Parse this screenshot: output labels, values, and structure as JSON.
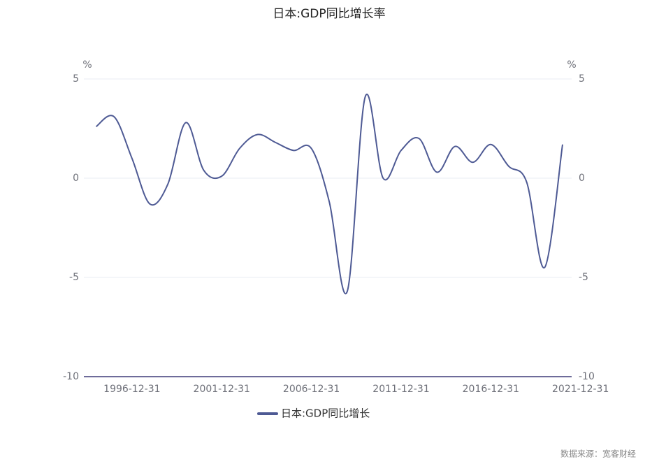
{
  "chart_data": {
    "type": "line",
    "title": "日本:GDP同比增长率",
    "categories": [
      null,
      "1996-12-31",
      null,
      null,
      null,
      null,
      "2001-12-31",
      null,
      null,
      null,
      null,
      "2006-12-31",
      null,
      null,
      null,
      null,
      "2011-12-31",
      null,
      null,
      null,
      null,
      "2016-12-31",
      null,
      null,
      null,
      null,
      "2021-12-31"
    ],
    "series": [
      {
        "name": "日本:GDP同比增长",
        "color": "#4e5a94",
        "values": [
          2.6,
          3.1,
          1.0,
          -1.3,
          -0.3,
          2.8,
          0.4,
          0.1,
          1.5,
          2.2,
          1.8,
          1.4,
          1.5,
          -1.2,
          -5.7,
          4.1,
          0.0,
          1.4,
          2.0,
          0.3,
          1.6,
          0.8,
          1.7,
          0.6,
          -0.2,
          -4.5,
          1.7
        ]
      }
    ],
    "ylim": [
      -10,
      5
    ],
    "yticks": [
      -10,
      -5,
      0,
      5
    ],
    "y2lim": [
      -10,
      5
    ],
    "y2ticks": [
      -10,
      -5,
      0,
      5
    ],
    "y_unit": "%",
    "y2_unit": "%",
    "grid": true,
    "legend": "bottom",
    "source": "数据来源：宽客财经"
  }
}
